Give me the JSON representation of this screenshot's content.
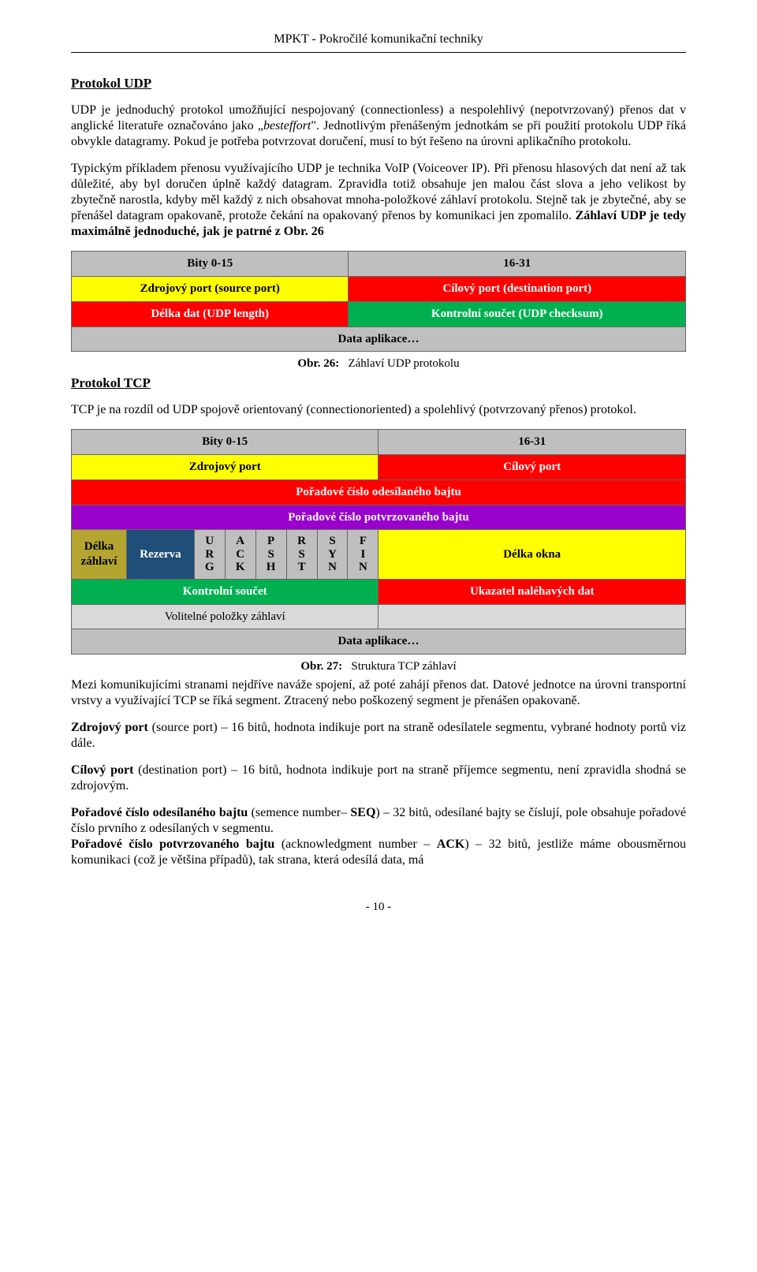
{
  "header": "MPKT - Pokročilé komunikační techniky",
  "section1_title": "Protokol UDP",
  "p1_a": "UDP je jednoduchý protokol umožňující nespojovaný (connectionless) a nespolehlivý (nepotvrzovaný) přenos dat v anglické literatuře označováno jako „",
  "p1_b": "besteffort",
  "p1_c": "\". Jednotlivým přenášeným jednotkám se při použití protokolu UDP říká obvykle datagramy. Pokud je potřeba potvrzovat doručení, musí to být řešeno na úrovni aplikačního protokolu.",
  "p2_a": "Typickým příkladem přenosu využívajícího UDP je technika VoIP (Voiceover IP). Při přenosu hlasových dat není až tak důležité, aby byl doručen úplně každý datagram. Zpravidla totiž obsahuje jen malou část slova a jeho velikost by zbytečně narostla, kdyby měl každý z nich obsahovat mnoha-položkové záhlaví protokolu. Stejně tak je zbytečné, aby se přenášel datagram opakovaně, protože čekání na opakovaný přenos by komunikaci jen zpomalilo. ",
  "p2_b": "Záhlaví UDP je tedy maximálně jednoduché, jak je patrné z Obr. 26",
  "udp": {
    "bits_left": "Bity 0-15",
    "bits_right": "16-31",
    "src_port": "Zdrojový port (source port)",
    "dst_port": "Cílový port (destination port)",
    "length": "Délka dat (UDP length)",
    "checksum": "Kontrolní součet (UDP checksum)",
    "data": "Data aplikace…"
  },
  "fig26_label": "Obr. 26:",
  "fig26_text": "Záhlaví UDP protokolu",
  "section2_title": "Protokol TCP",
  "p3": "TCP je na rozdíl od UDP spojově orientovaný (connectionoriented) a spolehlivý (potvrzovaný přenos) protokol.",
  "tcp": {
    "bits_left": "Bity 0-15",
    "bits_right": "16-31",
    "src_port": "Zdrojový port",
    "dst_port": "Cílový port",
    "seq": "Pořadové číslo odesílaného bajtu",
    "ack": "Pořadové číslo potvrzovaného bajtu",
    "hlen": "Délka záhlaví",
    "reserved": "Rezerva",
    "flags": [
      "U\nR\nG",
      "A\nC\nK",
      "P\nS\nH",
      "R\nS\nT",
      "S\nY\nN",
      "F\nI\nN"
    ],
    "winsize": "Délka okna",
    "checksum": "Kontrolní součet",
    "urgent": "Ukazatel naléhavých dat",
    "options": "Volitelné položky záhlaví",
    "options_pad": "",
    "data": "Data aplikace…"
  },
  "fig27_label": "Obr. 27:",
  "fig27_text": "Struktura TCP záhlaví",
  "p4": "Mezi komunikujícími stranami nejdříve naváže spojení, až poté zahájí přenos dat. Datové jednotce na úrovni transportní vrstvy a využívající TCP se říká segment. Ztracený nebo poškozený segment je přenášen opakovaně.",
  "p5_b": "Zdrojový port",
  "p5_r": " (source port) – 16 bitů, hodnota indikuje port na straně odesílatele segmentu, vybrané hodnoty portů viz dále.",
  "p6_b": "Cílový port",
  "p6_r": " (destination port) – 16 bitů, hodnota indikuje port na straně příjemce segmentu, není zpravidla shodná se zdrojovým.",
  "p7_b": "Pořadové číslo odesílaného bajtu",
  "p7_m": " (semence number– ",
  "p7_seq": "SEQ",
  "p7_r": ") – 32 bitů, odesílané bajty se číslují, pole obsahuje pořadové číslo prvního z odesílaných v segmentu.",
  "p8_b": "Pořadové číslo potvrzovaného bajtu",
  "p8_m": " (acknowledgment number – ",
  "p8_ack": "ACK",
  "p8_r": ") – 32 bitů, jestliže máme obousměrnou komunikaci (což je většina případů), tak strana, která odesílá data, má",
  "page_number": "- 10 -"
}
